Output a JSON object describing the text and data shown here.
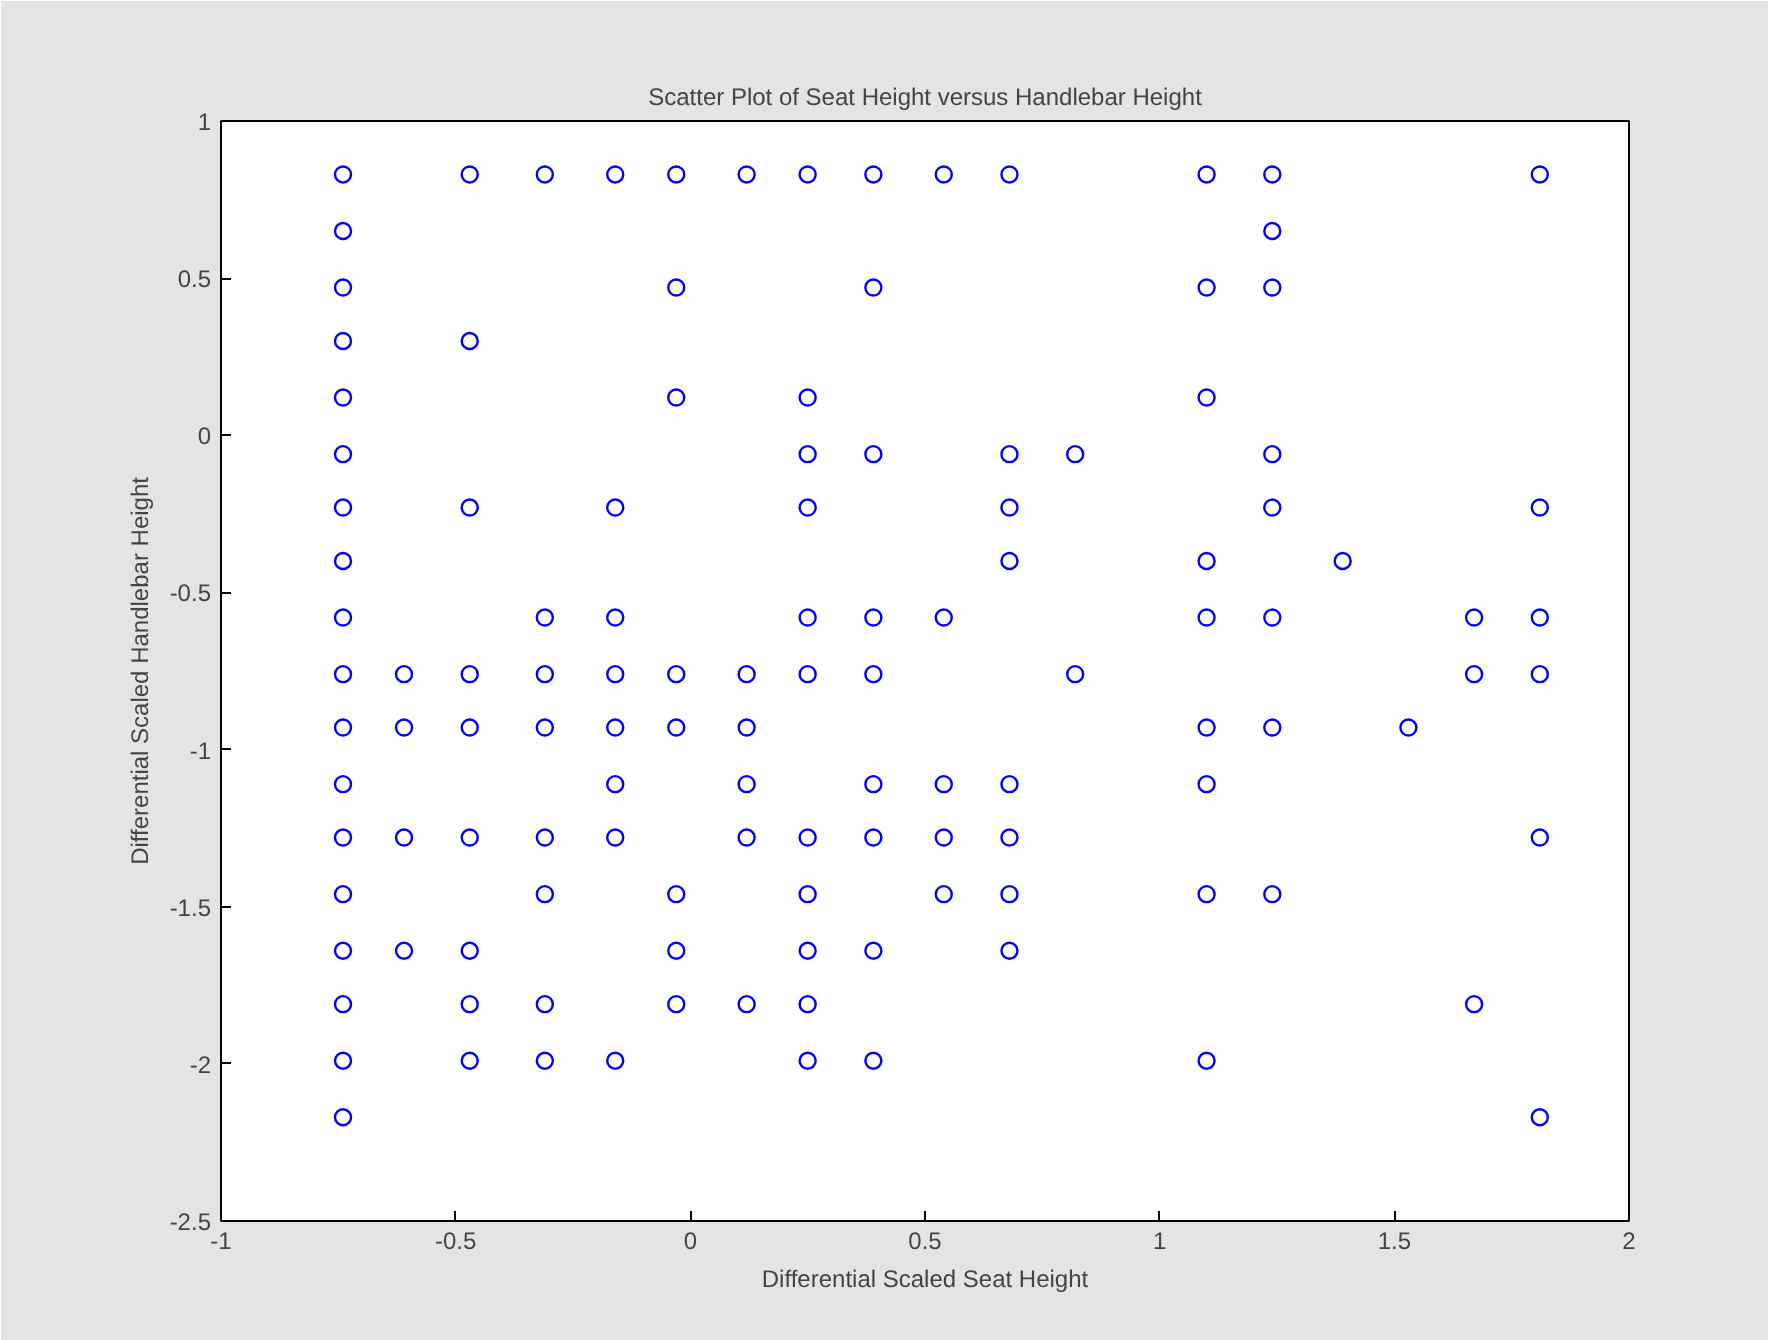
{
  "chart_data": {
    "type": "scatter",
    "title": "Scatter Plot of Seat Height versus Handlebar Height",
    "xlabel": "Differential Scaled Seat Height",
    "ylabel": "Differential Scaled Handlebar Height",
    "x": [
      -0.74,
      -0.47,
      -0.31,
      -0.16,
      -0.03,
      0.12,
      0.25,
      0.39,
      0.54,
      0.68,
      1.1,
      1.24,
      1.81,
      -0.74,
      1.24,
      -0.74,
      -0.03,
      0.39,
      1.1,
      1.24,
      -0.74,
      -0.47,
      -0.74,
      -0.03,
      0.25,
      1.1,
      -0.74,
      0.25,
      0.39,
      0.68,
      0.82,
      1.24,
      -0.74,
      -0.47,
      -0.16,
      0.25,
      0.68,
      1.24,
      1.81,
      -0.74,
      0.68,
      1.1,
      1.39,
      -0.74,
      -0.31,
      -0.16,
      0.25,
      0.39,
      0.54,
      1.1,
      1.24,
      1.67,
      1.81,
      -0.74,
      -0.61,
      -0.47,
      -0.31,
      -0.16,
      -0.03,
      0.12,
      0.25,
      0.39,
      0.82,
      1.67,
      1.81,
      -0.74,
      -0.61,
      -0.47,
      -0.31,
      -0.16,
      -0.03,
      0.12,
      1.1,
      1.24,
      1.53,
      -0.74,
      -0.16,
      0.12,
      0.39,
      0.54,
      0.68,
      1.1,
      -0.74,
      -0.61,
      -0.47,
      -0.31,
      -0.16,
      0.12,
      0.25,
      0.39,
      0.54,
      0.68,
      1.81,
      -0.74,
      -0.31,
      -0.03,
      0.25,
      0.54,
      0.68,
      1.1,
      1.24,
      -0.74,
      -0.61,
      -0.47,
      -0.03,
      0.25,
      0.39,
      0.68,
      -0.74,
      -0.47,
      -0.31,
      -0.03,
      0.12,
      0.25,
      1.67,
      -0.74,
      -0.47,
      -0.31,
      -0.16,
      0.25,
      0.39,
      1.1,
      -0.74,
      1.81
    ],
    "series": [
      {
        "color": "#0000ff",
        "values": [
          0.83,
          0.83,
          0.83,
          0.83,
          0.83,
          0.83,
          0.83,
          0.83,
          0.83,
          0.83,
          0.83,
          0.83,
          0.83,
          0.65,
          0.65,
          0.47,
          0.47,
          0.47,
          0.47,
          0.47,
          0.3,
          0.3,
          0.12,
          0.12,
          0.12,
          0.12,
          -0.06,
          -0.06,
          -0.06,
          -0.06,
          -0.06,
          -0.06,
          -0.23,
          -0.23,
          -0.23,
          -0.23,
          -0.23,
          -0.23,
          -0.23,
          -0.4,
          -0.4,
          -0.4,
          -0.4,
          -0.58,
          -0.58,
          -0.58,
          -0.58,
          -0.58,
          -0.58,
          -0.58,
          -0.58,
          -0.58,
          -0.58,
          -0.76,
          -0.76,
          -0.76,
          -0.76,
          -0.76,
          -0.76,
          -0.76,
          -0.76,
          -0.76,
          -0.76,
          -0.76,
          -0.76,
          -0.93,
          -0.93,
          -0.93,
          -0.93,
          -0.93,
          -0.93,
          -0.93,
          -0.93,
          -0.93,
          -0.93,
          -1.11,
          -1.11,
          -1.11,
          -1.11,
          -1.11,
          -1.11,
          -1.11,
          -1.28,
          -1.28,
          -1.28,
          -1.28,
          -1.28,
          -1.28,
          -1.28,
          -1.28,
          -1.28,
          -1.28,
          -1.28,
          -1.46,
          -1.46,
          -1.46,
          -1.46,
          -1.46,
          -1.46,
          -1.46,
          -1.46,
          -1.64,
          -1.64,
          -1.64,
          -1.64,
          -1.64,
          -1.64,
          -1.64,
          -1.81,
          -1.81,
          -1.81,
          -1.81,
          -1.81,
          -1.81,
          -1.81,
          -1.99,
          -1.99,
          -1.99,
          -1.99,
          -1.99,
          -1.99,
          -1.99,
          -2.17,
          -2.17
        ]
      }
    ],
    "xlim": [
      -1,
      2
    ],
    "ylim": [
      -2.5,
      1
    ],
    "xticks": [
      -1,
      -0.5,
      0,
      0.5,
      1,
      1.5,
      2
    ],
    "yticks": [
      -2.5,
      -2,
      -1.5,
      -1,
      -0.5,
      0,
      0.5,
      1
    ],
    "marker": "circle"
  }
}
